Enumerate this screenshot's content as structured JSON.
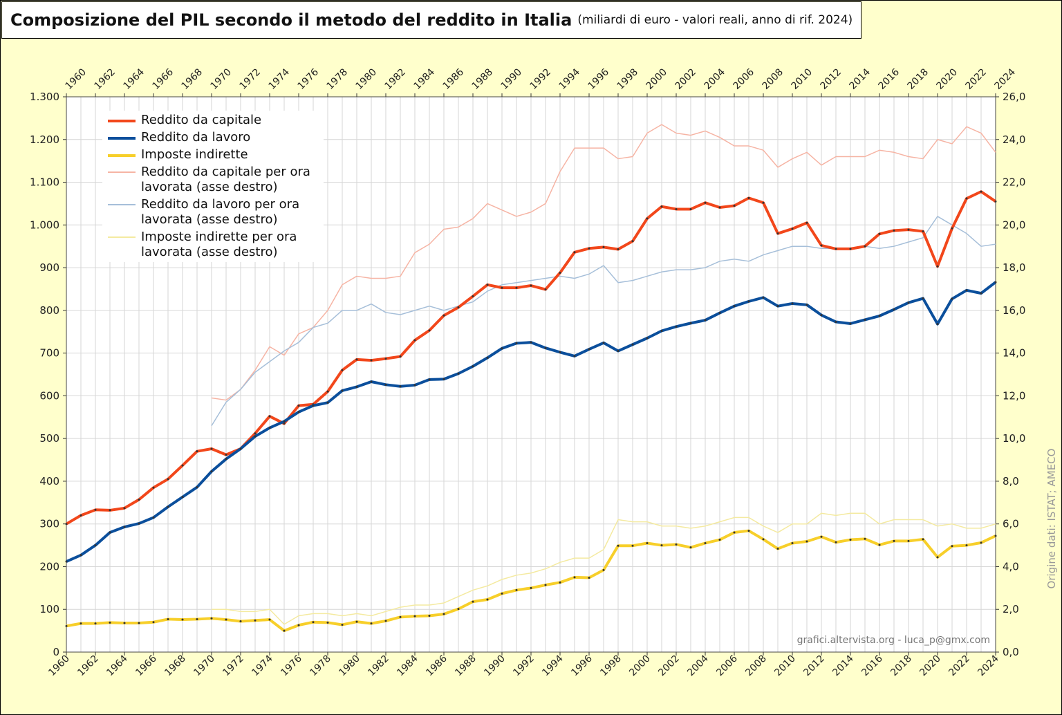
{
  "chart_data": {
    "type": "line",
    "title": "Composizione del PIL secondo il metodo del reddito in Italia",
    "subtitle": "(miliardi di euro - valori reali, anno di rif. 2024)",
    "source": "Origine dati: ISTAT; AMECO",
    "watermark": "grafici.altervista.org - luca_p@gmx.com",
    "x": [
      1960,
      1961,
      1962,
      1963,
      1964,
      1965,
      1966,
      1967,
      1968,
      1969,
      1970,
      1971,
      1972,
      1973,
      1974,
      1975,
      1976,
      1977,
      1978,
      1979,
      1980,
      1981,
      1982,
      1983,
      1984,
      1985,
      1986,
      1987,
      1988,
      1989,
      1990,
      1991,
      1992,
      1993,
      1994,
      1995,
      1996,
      1997,
      1998,
      1999,
      2000,
      2001,
      2002,
      2003,
      2004,
      2005,
      2006,
      2007,
      2008,
      2009,
      2010,
      2011,
      2012,
      2013,
      2014,
      2015,
      2016,
      2017,
      2018,
      2019,
      2020,
      2021,
      2022,
      2023,
      2024
    ],
    "xlim": [
      1960,
      2024
    ],
    "xticks": [
      1960,
      1962,
      1964,
      1966,
      1968,
      1970,
      1972,
      1974,
      1976,
      1978,
      1980,
      1982,
      1984,
      1986,
      1988,
      1990,
      1992,
      1994,
      1996,
      1998,
      2000,
      2002,
      2004,
      2006,
      2008,
      2010,
      2012,
      2014,
      2016,
      2018,
      2020,
      2022,
      2024
    ],
    "ylim": [
      0,
      1300
    ],
    "yticks": [
      0,
      100,
      200,
      300,
      400,
      500,
      600,
      700,
      800,
      900,
      {
        "value": 1000,
        "label": "1.000"
      },
      {
        "value": 1100,
        "label": "1.100"
      },
      {
        "value": 1200,
        "label": "1.200"
      },
      {
        "value": 1300,
        "label": "1.300"
      }
    ],
    "y2lim": [
      0,
      26
    ],
    "y2ticks": [
      {
        "value": 0,
        "label": "0,0"
      },
      {
        "value": 2,
        "label": "2,0"
      },
      {
        "value": 4,
        "label": "4,0"
      },
      {
        "value": 6,
        "label": "6,0"
      },
      {
        "value": 8,
        "label": "8,0"
      },
      {
        "value": 10,
        "label": "10,0"
      },
      {
        "value": 12,
        "label": "12,0"
      },
      {
        "value": 14,
        "label": "14,0"
      },
      {
        "value": 16,
        "label": "16,0"
      },
      {
        "value": 18,
        "label": "18,0"
      },
      {
        "value": 20,
        "label": "20,0"
      },
      {
        "value": 22,
        "label": "22,0"
      },
      {
        "value": 24,
        "label": "24,0"
      },
      {
        "value": 26,
        "label": "26,0"
      }
    ],
    "grid": true,
    "legend": "upper left",
    "series": [
      {
        "name": "Reddito da capitale",
        "color": "#f2471b",
        "line_width": 4,
        "values": [
          300,
          320,
          333,
          332,
          337,
          357,
          385,
          405,
          437,
          470,
          476,
          462,
          476,
          512,
          552,
          535,
          577,
          580,
          610,
          660,
          685,
          683,
          687,
          692,
          730,
          753,
          788,
          807,
          833,
          860,
          853,
          853,
          858,
          849,
          888,
          936,
          945,
          948,
          943,
          962,
          1015,
          1043,
          1037,
          1037,
          1052,
          1041,
          1045,
          1063,
          1052,
          980,
          991,
          1005,
          952,
          944,
          944,
          950,
          979,
          987,
          989,
          985,
          903,
          992,
          1062,
          1078,
          1055
        ]
      },
      {
        "name": "Reddito da lavoro",
        "color": "#0b4f9c",
        "line_width": 4,
        "values": [
          212,
          227,
          250,
          280,
          293,
          301,
          315,
          340,
          363,
          386,
          423,
          452,
          476,
          505,
          525,
          540,
          562,
          577,
          584,
          612,
          621,
          633,
          626,
          622,
          625,
          638,
          639,
          652,
          669,
          689,
          711,
          723,
          725,
          712,
          702,
          693,
          709,
          724,
          705,
          720,
          735,
          752,
          762,
          770,
          777,
          794,
          810,
          821,
          830,
          810,
          816,
          813,
          789,
          773,
          769,
          778,
          787,
          802,
          818,
          828,
          768,
          827,
          847,
          840,
          866
        ]
      },
      {
        "name": "Imposte indirette",
        "color": "#f7cf2a",
        "line_width": 4,
        "values": [
          61,
          67,
          67,
          69,
          68,
          68,
          70,
          77,
          76,
          77,
          79,
          76,
          72,
          74,
          76,
          50,
          63,
          70,
          69,
          64,
          71,
          67,
          73,
          82,
          84,
          85,
          89,
          101,
          118,
          123,
          137,
          145,
          150,
          157,
          163,
          175,
          174,
          192,
          249,
          249,
          255,
          250,
          252,
          245,
          255,
          263,
          280,
          284,
          264,
          242,
          255,
          259,
          270,
          257,
          263,
          265,
          251,
          260,
          260,
          264,
          222,
          248,
          250,
          256,
          272
        ]
      },
      {
        "name": "Reddito da capitale per ora lavorata (asse destro)",
        "color": "#f6b4a4",
        "line_width": 1.5,
        "axis": "y2",
        "values": [
          null,
          null,
          null,
          null,
          null,
          null,
          null,
          null,
          null,
          null,
          11.9,
          11.8,
          12.3,
          13.2,
          14.3,
          13.9,
          14.9,
          15.2,
          16.0,
          17.2,
          17.6,
          17.5,
          17.5,
          17.6,
          18.7,
          19.1,
          19.8,
          19.9,
          20.3,
          21.0,
          20.7,
          20.4,
          20.6,
          21.0,
          22.5,
          23.6,
          23.6,
          23.6,
          23.1,
          23.2,
          24.3,
          24.7,
          24.3,
          24.2,
          24.4,
          24.1,
          23.7,
          23.7,
          23.5,
          22.7,
          23.1,
          23.4,
          22.8,
          23.2,
          23.2,
          23.2,
          23.5,
          23.4,
          23.2,
          23.1,
          24.0,
          23.8,
          24.6,
          24.3,
          23.4
        ]
      },
      {
        "name": "Reddito da lavoro per ora lavorata (asse destro)",
        "color": "#a6bfd9",
        "line_width": 1.5,
        "axis": "y2",
        "values": [
          null,
          null,
          null,
          null,
          null,
          null,
          null,
          null,
          null,
          null,
          10.6,
          11.7,
          12.3,
          13.1,
          13.6,
          14.1,
          14.5,
          15.2,
          15.4,
          16.0,
          16.0,
          16.3,
          15.9,
          15.8,
          16.0,
          16.2,
          16.0,
          16.2,
          16.4,
          16.9,
          17.2,
          17.3,
          17.4,
          17.5,
          17.6,
          17.5,
          17.7,
          18.1,
          17.3,
          17.4,
          17.6,
          17.8,
          17.9,
          17.9,
          18.0,
          18.3,
          18.4,
          18.3,
          18.6,
          18.8,
          19.0,
          19.0,
          18.9,
          18.9,
          18.9,
          19.0,
          18.9,
          19.0,
          19.2,
          19.4,
          20.4,
          20.0,
          19.6,
          19.0,
          19.1
        ]
      },
      {
        "name": "Imposte indirette per ora lavorata (asse destro)",
        "color": "#f4eaa0",
        "line_width": 1.5,
        "axis": "y2",
        "values": [
          null,
          null,
          null,
          null,
          null,
          null,
          null,
          null,
          null,
          null,
          2.0,
          2.0,
          1.9,
          1.9,
          2.0,
          1.3,
          1.7,
          1.8,
          1.8,
          1.7,
          1.8,
          1.7,
          1.9,
          2.1,
          2.2,
          2.2,
          2.3,
          2.6,
          2.9,
          3.1,
          3.4,
          3.6,
          3.7,
          3.9,
          4.2,
          4.4,
          4.4,
          4.8,
          6.2,
          6.1,
          6.1,
          5.9,
          5.9,
          5.8,
          5.9,
          6.1,
          6.3,
          6.3,
          5.9,
          5.6,
          6.0,
          6.0,
          6.5,
          6.4,
          6.5,
          6.5,
          6.0,
          6.2,
          6.2,
          6.2,
          5.9,
          6.0,
          5.8,
          5.8,
          6.0
        ]
      }
    ]
  }
}
